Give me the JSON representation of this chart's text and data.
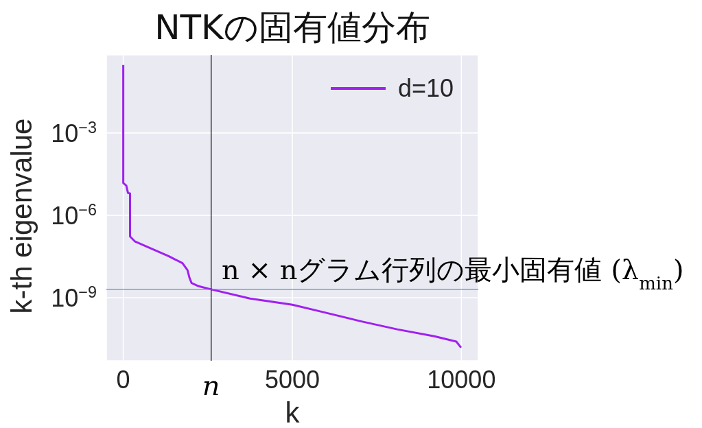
{
  "chart_data": {
    "type": "line",
    "title": "NTKの固有値分布",
    "xlabel": "k",
    "ylabel": "k-th eigenvalue",
    "x": [
      0,
      0,
      90,
      140,
      200,
      200,
      350,
      850,
      1350,
      1750,
      1900,
      1960,
      2020,
      2230,
      2600,
      3750,
      5000,
      5900,
      7000,
      8100,
      9200,
      9850,
      9990
    ],
    "series": [
      {
        "name": "d=10",
        "color": "#a020f0",
        "values": [
          0.3,
          1.5e-05,
          1.2e-05,
          6.5e-06,
          6.3e-06,
          1.7e-07,
          1.1e-07,
          6e-08,
          3.2e-08,
          1.8e-08,
          1e-08,
          5.2e-09,
          3.4e-09,
          2.6e-09,
          2e-09,
          9.3e-10,
          5.5e-10,
          3e-10,
          1.4e-10,
          7e-11,
          3.9e-11,
          2.5e-11,
          1.5e-11
        ]
      }
    ],
    "xlim": [
      -500,
      10500
    ],
    "xticks": [
      0,
      5000,
      10000
    ],
    "ylim": [
      5e-12,
      0.7
    ],
    "yticks": [
      {
        "value": 0.001,
        "label": "10$^{−3}$"
      },
      {
        "value": 1e-06,
        "label": "10$^{−6}$"
      },
      {
        "value": 1e-09,
        "label": "10$^{−9}$"
      }
    ],
    "log": "y",
    "grid": true,
    "legend": "top right",
    "ref_lines": [
      {
        "axis": "x",
        "value": 2600,
        "label": "n",
        "color": "#000000"
      },
      {
        "axis": "y",
        "value": 2e-09,
        "label": "n × nグラム行列の最小固有値 (λ$_{min}$)",
        "color": "#4a90e2"
      }
    ]
  }
}
